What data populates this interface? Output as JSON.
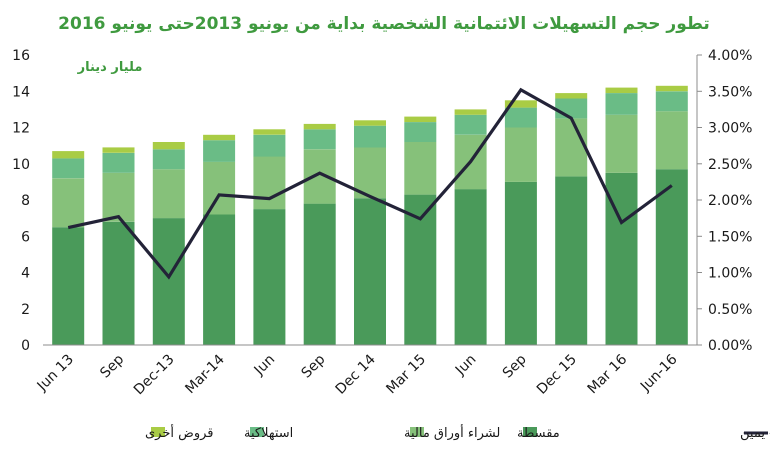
{
  "chart_data": {
    "type": "bar",
    "stacked": true,
    "title": "تطور حجم التسهيلات الائتمانية الشخصية بداية من يونيو 2013حتى يونيو 2016",
    "unit_label": "مليار دينار",
    "categories": [
      "Jun 13",
      "Sep",
      "Dec-13",
      "Mar-14",
      "Jun",
      "Sep",
      "Dec 14",
      "Mar 15",
      "Jun",
      "Sep",
      "Dec 15",
      "Mar 16",
      "Jun-16"
    ],
    "series": [
      {
        "name": "مقسطة",
        "color": "#4a9a5a",
        "values": [
          6.5,
          6.8,
          7.0,
          7.2,
          7.5,
          7.8,
          8.1,
          8.3,
          8.6,
          9.0,
          9.3,
          9.5,
          9.7
        ]
      },
      {
        "name": "لشراء أوراق مالية",
        "color": "#86c17a",
        "values": [
          2.7,
          2.7,
          2.7,
          2.9,
          2.9,
          3.0,
          2.8,
          2.9,
          3.0,
          3.0,
          3.2,
          3.2,
          3.2
        ]
      },
      {
        "name": "استهلاكية",
        "color": "#6abc86",
        "values": [
          1.1,
          1.1,
          1.1,
          1.2,
          1.2,
          1.1,
          1.2,
          1.1,
          1.1,
          1.1,
          1.1,
          1.2,
          1.1
        ]
      },
      {
        "name": "قروض أخرى",
        "color": "#a9cc45",
        "values": [
          0.4,
          0.3,
          0.4,
          0.3,
          0.3,
          0.3,
          0.3,
          0.3,
          0.3,
          0.4,
          0.3,
          0.3,
          0.3
        ]
      }
    ],
    "line": {
      "name": "معدل النمو الشهري - يمين",
      "color": "#232338",
      "axis": "right",
      "values": [
        1.62,
        1.77,
        0.94,
        2.07,
        2.02,
        2.37,
        2.05,
        1.74,
        2.53,
        3.52,
        3.13,
        1.69,
        2.2
      ]
    },
    "y_left": {
      "min": 0,
      "max": 16,
      "step": 2,
      "ticks": [
        "0",
        "2",
        "4",
        "6",
        "8",
        "10",
        "12",
        "14",
        "16"
      ]
    },
    "y_right": {
      "min": 0,
      "max": 4,
      "step": 0.5,
      "ticks": [
        "0.00%",
        "0.50%",
        "1.00%",
        "1.50%",
        "2.00%",
        "2.50%",
        "3.00%",
        "3.50%",
        "4.00%"
      ]
    },
    "grid": false,
    "legend_position": "bottom",
    "title_color": "#3f9a3f"
  }
}
